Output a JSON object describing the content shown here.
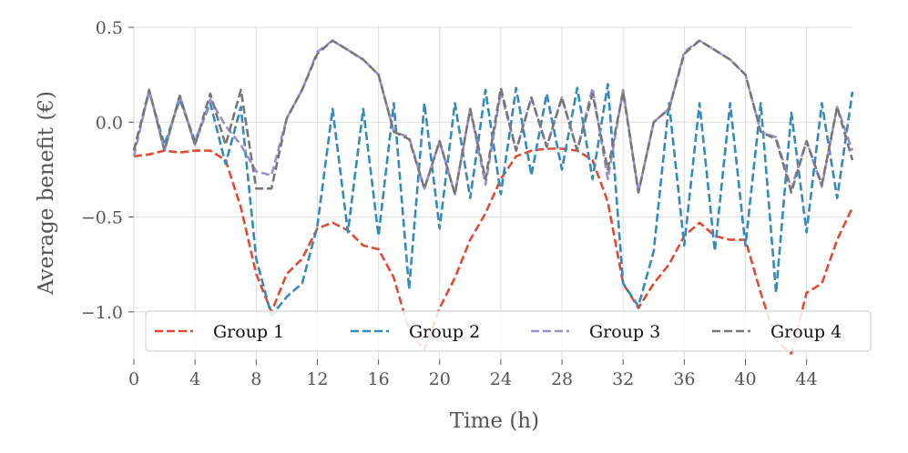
{
  "chart_data": {
    "type": "line",
    "title": "",
    "xlabel": "Time (h)",
    "ylabel": "Average benefit (€)",
    "xlim": [
      0,
      47
    ],
    "ylim": [
      -1.25,
      0.5
    ],
    "xticks": [
      0,
      4,
      8,
      12,
      16,
      20,
      24,
      28,
      32,
      36,
      40,
      44
    ],
    "xtick_labels": [
      "0",
      "4",
      "8",
      "12",
      "16",
      "20",
      "24",
      "28",
      "32",
      "36",
      "40",
      "44"
    ],
    "yticks": [
      0.5,
      0.0,
      -0.5,
      -1.0
    ],
    "ytick_labels": [
      "0.5",
      "0.0",
      "−0.5",
      "−1.0"
    ],
    "grid": true,
    "legend_position": "lower-center",
    "x": [
      0,
      1,
      2,
      3,
      4,
      5,
      6,
      7,
      8,
      9,
      10,
      11,
      12,
      13,
      14,
      15,
      16,
      17,
      18,
      19,
      20,
      21,
      22,
      23,
      24,
      25,
      26,
      27,
      28,
      29,
      30,
      31,
      32,
      33,
      34,
      35,
      36,
      37,
      38,
      39,
      40,
      41,
      42,
      43,
      44,
      45,
      46,
      47
    ],
    "series": [
      {
        "name": "Group 1",
        "color": "#E24A33",
        "values": [
          -0.18,
          -0.17,
          -0.15,
          -0.16,
          -0.15,
          -0.15,
          -0.2,
          -0.45,
          -0.8,
          -1.0,
          -0.8,
          -0.72,
          -0.56,
          -0.53,
          -0.57,
          -0.65,
          -0.67,
          -0.82,
          -1.1,
          -1.2,
          -0.98,
          -0.82,
          -0.62,
          -0.48,
          -0.3,
          -0.18,
          -0.15,
          -0.14,
          -0.14,
          -0.15,
          -0.2,
          -0.42,
          -0.85,
          -0.98,
          -0.85,
          -0.75,
          -0.6,
          -0.53,
          -0.6,
          -0.62,
          -0.62,
          -0.9,
          -1.15,
          -1.22,
          -0.9,
          -0.85,
          -0.62,
          -0.45
        ]
      },
      {
        "name": "Group 2",
        "color": "#348ABD",
        "values": [
          -0.15,
          0.16,
          -0.12,
          0.12,
          -0.1,
          0.1,
          -0.22,
          0.08,
          -0.72,
          -1.02,
          -0.92,
          -0.85,
          -0.55,
          0.07,
          -0.58,
          0.07,
          -0.6,
          0.1,
          -0.88,
          0.1,
          -0.56,
          0.1,
          -0.4,
          0.17,
          -0.38,
          0.18,
          -0.28,
          0.15,
          -0.25,
          0.18,
          -0.3,
          0.2,
          -0.85,
          -0.97,
          -0.68,
          0.1,
          -0.65,
          0.1,
          -0.68,
          0.1,
          -0.65,
          0.1,
          -0.9,
          0.05,
          -0.58,
          0.1,
          -0.4,
          0.16
        ]
      },
      {
        "name": "Group 3",
        "color": "#988ED5",
        "values": [
          -0.18,
          0.17,
          -0.15,
          0.14,
          -0.12,
          0.12,
          -0.02,
          -0.12,
          -0.26,
          -0.28,
          0.02,
          0.17,
          0.37,
          0.43,
          0.38,
          0.33,
          0.25,
          -0.05,
          -0.08,
          -0.35,
          -0.1,
          -0.38,
          0.07,
          -0.33,
          0.16,
          -0.15,
          0.13,
          -0.13,
          0.13,
          -0.15,
          0.18,
          -0.3,
          0.17,
          -0.37,
          0.0,
          0.07,
          0.37,
          0.43,
          0.38,
          0.33,
          0.25,
          -0.05,
          -0.08,
          -0.35,
          -0.1,
          -0.34,
          0.08,
          -0.15
        ]
      },
      {
        "name": "Group 4",
        "color": "#777777",
        "values": [
          -0.15,
          0.17,
          -0.15,
          0.14,
          -0.12,
          0.15,
          -0.12,
          0.17,
          -0.35,
          -0.35,
          0.02,
          0.17,
          0.36,
          0.43,
          0.38,
          0.33,
          0.25,
          -0.05,
          -0.09,
          -0.35,
          -0.1,
          -0.38,
          0.07,
          -0.3,
          0.18,
          -0.15,
          0.13,
          -0.13,
          0.13,
          -0.15,
          0.15,
          -0.25,
          0.16,
          -0.37,
          0.0,
          0.07,
          0.36,
          0.43,
          0.38,
          0.33,
          0.25,
          -0.05,
          -0.09,
          -0.37,
          -0.1,
          -0.33,
          0.08,
          -0.2
        ]
      }
    ]
  }
}
